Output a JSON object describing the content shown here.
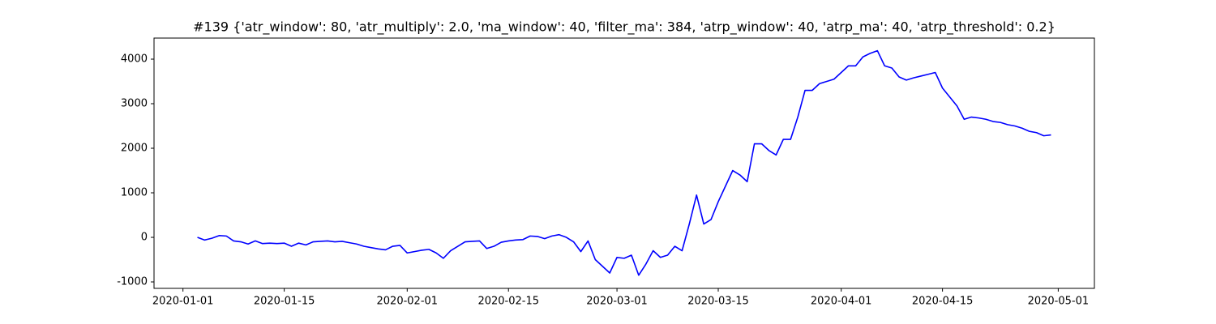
{
  "chart_data": {
    "type": "line",
    "title": "#139 {'atr_window': 80, 'atr_multiply': 2.0, 'ma_window': 40, 'filter_ma': 384, 'atrp_window': 40, 'atrp_ma': 40, 'atrp_threshold': 0.2}",
    "x": [
      "2020-01-03",
      "2020-01-04",
      "2020-01-05",
      "2020-01-06",
      "2020-01-07",
      "2020-01-08",
      "2020-01-09",
      "2020-01-10",
      "2020-01-11",
      "2020-01-12",
      "2020-01-13",
      "2020-01-14",
      "2020-01-15",
      "2020-01-16",
      "2020-01-17",
      "2020-01-18",
      "2020-01-19",
      "2020-01-20",
      "2020-01-21",
      "2020-01-22",
      "2020-01-23",
      "2020-01-24",
      "2020-01-25",
      "2020-01-26",
      "2020-01-27",
      "2020-01-28",
      "2020-01-29",
      "2020-01-30",
      "2020-01-31",
      "2020-02-01",
      "2020-02-02",
      "2020-02-03",
      "2020-02-04",
      "2020-02-05",
      "2020-02-06",
      "2020-02-07",
      "2020-02-08",
      "2020-02-09",
      "2020-02-10",
      "2020-02-11",
      "2020-02-12",
      "2020-02-13",
      "2020-02-14",
      "2020-02-15",
      "2020-02-16",
      "2020-02-17",
      "2020-02-18",
      "2020-02-19",
      "2020-02-20",
      "2020-02-21",
      "2020-02-22",
      "2020-02-23",
      "2020-02-24",
      "2020-02-25",
      "2020-02-26",
      "2020-02-27",
      "2020-02-28",
      "2020-02-29",
      "2020-03-01",
      "2020-03-02",
      "2020-03-03",
      "2020-03-04",
      "2020-03-05",
      "2020-03-06",
      "2020-03-07",
      "2020-03-08",
      "2020-03-09",
      "2020-03-10",
      "2020-03-11",
      "2020-03-12",
      "2020-03-13",
      "2020-03-14",
      "2020-03-15",
      "2020-03-16",
      "2020-03-17",
      "2020-03-18",
      "2020-03-19",
      "2020-03-20",
      "2020-03-21",
      "2020-03-22",
      "2020-03-23",
      "2020-03-24",
      "2020-03-25",
      "2020-03-26",
      "2020-03-27",
      "2020-03-28",
      "2020-03-29",
      "2020-03-30",
      "2020-03-31",
      "2020-04-01",
      "2020-04-02",
      "2020-04-03",
      "2020-04-04",
      "2020-04-05",
      "2020-04-06",
      "2020-04-07",
      "2020-04-08",
      "2020-04-09",
      "2020-04-10",
      "2020-04-11",
      "2020-04-12",
      "2020-04-13",
      "2020-04-14",
      "2020-04-15",
      "2020-04-16",
      "2020-04-17",
      "2020-04-18",
      "2020-04-19",
      "2020-04-20",
      "2020-04-21",
      "2020-04-22",
      "2020-04-23",
      "2020-04-24",
      "2020-04-25",
      "2020-04-26",
      "2020-04-27",
      "2020-04-28",
      "2020-04-29",
      "2020-04-30"
    ],
    "series": [
      {
        "color": "#0000ff",
        "values": [
          0,
          -60,
          -20,
          40,
          30,
          -80,
          -100,
          -150,
          -80,
          -140,
          -130,
          -140,
          -130,
          -200,
          -130,
          -170,
          -100,
          -90,
          -80,
          -100,
          -90,
          -120,
          -150,
          -200,
          -230,
          -260,
          -280,
          -200,
          -180,
          -350,
          -320,
          -290,
          -270,
          -350,
          -470,
          -300,
          -200,
          -100,
          -90,
          -80,
          -250,
          -200,
          -110,
          -80,
          -60,
          -50,
          30,
          20,
          -30,
          30,
          60,
          0,
          -100,
          -320,
          -80,
          -500,
          -650,
          -800,
          -450,
          -470,
          -400,
          -850,
          -600,
          -300,
          -450,
          -400,
          -200,
          -300,
          300,
          950,
          300,
          400,
          800,
          1150,
          1500,
          1400,
          1250,
          2100,
          2100,
          1950,
          1850,
          2200,
          2200,
          2700,
          3300,
          3300,
          3450,
          3500,
          3550,
          3700,
          3850,
          3850,
          4050,
          4130,
          4190,
          3850,
          3800,
          3600,
          3530,
          3580,
          3620,
          3660,
          3700,
          3350,
          3150,
          2950,
          2650,
          2700,
          2680,
          2650,
          2600,
          2580,
          2530,
          2500,
          2450,
          2380,
          2350,
          2280,
          2300
        ]
      }
    ],
    "xlim": [
      "2019-12-28",
      "2020-05-06"
    ],
    "xticks": [
      "2020-01-01",
      "2020-01-15",
      "2020-02-01",
      "2020-02-15",
      "2020-03-01",
      "2020-03-15",
      "2020-04-01",
      "2020-04-15",
      "2020-05-01"
    ],
    "ylim": [
      -1145,
      4473
    ],
    "yticks": [
      -1000,
      0,
      1000,
      2000,
      3000,
      4000
    ],
    "grid": false
  }
}
